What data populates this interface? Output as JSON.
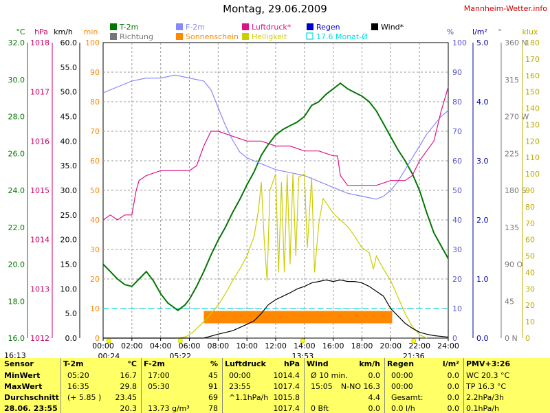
{
  "header": {
    "title": "Montag, 29.06.2009",
    "site": "Mannheim-Wetter.info"
  },
  "legend": [
    {
      "label": "T-2m",
      "color": "#007700",
      "kind": "solid"
    },
    {
      "label": "Richtung",
      "color": "#777777",
      "kind": "solid"
    },
    {
      "label": "F-2m",
      "color": "#8888ff",
      "kind": "solid"
    },
    {
      "label": "Sonnenschein",
      "color": "#ff8800",
      "kind": "solid"
    },
    {
      "label": "Luftdruck*",
      "color": "#dd1188",
      "kind": "solid"
    },
    {
      "label": "Helligkeit",
      "color": "#cccc00",
      "kind": "solid"
    },
    {
      "label": "Regen",
      "color": "#0000cc",
      "kind": "solid"
    },
    {
      "label": "17.6 Monat-Ø",
      "color": "#00dddd",
      "kind": "outline"
    },
    {
      "label": "Wind*",
      "color": "#000000",
      "kind": "solid"
    }
  ],
  "axis_units": {
    "temp": {
      "label": "°C",
      "color": "#007700"
    },
    "pressure": {
      "label": "hPa",
      "color": "#cc0066"
    },
    "wind": {
      "label": "km/h",
      "color": "#000000"
    },
    "minutes": {
      "label": "min",
      "color": "#ff8800"
    },
    "humidity": {
      "label": "%",
      "color": "#5555cc"
    },
    "rain": {
      "label": "l/m²",
      "color": "#0000aa"
    },
    "direction": {
      "label": "°",
      "color": "#777777"
    },
    "lux": {
      "label": "klux",
      "color": "#bbaa00"
    }
  },
  "chart_data": {
    "type": "line",
    "x_range": [
      "00:00",
      "24:00"
    ],
    "x_ticks": [
      "00:00",
      "02:00",
      "04:00",
      "06:00",
      "08:00",
      "10:00",
      "12:00",
      "14:00",
      "16:00",
      "18:00",
      "20:00",
      "22:00",
      "24:00"
    ],
    "axes": {
      "temp": {
        "range": [
          16,
          32
        ],
        "ticks": [
          "16.0",
          "18.0",
          "20.0",
          "22.0",
          "24.0",
          "26.0",
          "28.0",
          "30.0",
          "32.0"
        ]
      },
      "pressure": {
        "range": [
          1012,
          1018
        ],
        "ticks": [
          "1012",
          "1013",
          "1014",
          "1015",
          "1016",
          "1017",
          "1018"
        ]
      },
      "wind": {
        "range": [
          0,
          60
        ],
        "ticks": [
          "0.0",
          "5.0",
          "10.0",
          "15.0",
          "20.0",
          "25.0",
          "30.0",
          "35.0",
          "40.0",
          "45.0",
          "50.0",
          "55.0",
          "60.0"
        ]
      },
      "minutes": {
        "range": [
          0,
          100
        ],
        "ticks": [
          "0",
          "10",
          "20",
          "30",
          "40",
          "50",
          "60",
          "70",
          "80",
          "90",
          "100"
        ]
      },
      "humidity": {
        "range": [
          0,
          100
        ],
        "ticks": [
          "0",
          "10",
          "20",
          "30",
          "40",
          "50",
          "60",
          "70",
          "80",
          "90",
          "100"
        ]
      },
      "rain": {
        "range": [
          0,
          5
        ],
        "ticks": [
          "0.0",
          "1.0",
          "2.0",
          "3.0",
          "4.0",
          "5.0"
        ]
      },
      "direction": {
        "range": [
          0,
          360
        ],
        "ticks": [
          "0 N",
          "45",
          "90 O",
          "135",
          "180 S",
          "225",
          "270 W",
          "315",
          "360 N"
        ]
      },
      "lux": {
        "range": [
          0,
          180
        ],
        "ticks": [
          "0",
          "10",
          "20",
          "30",
          "40",
          "50",
          "60",
          "70",
          "80",
          "90",
          "100",
          "110",
          "120",
          "130",
          "140",
          "150",
          "160",
          "170",
          "180"
        ]
      }
    },
    "sun_markers": [
      "00:24",
      "05:22",
      "13:53",
      "21:36"
    ],
    "monthly_avg_temp_line": 17.6,
    "series": [
      {
        "name": "T-2m",
        "axis": "temp",
        "color": "#007700",
        "points": [
          [
            0,
            20.0
          ],
          [
            0.5,
            19.6
          ],
          [
            1,
            19.2
          ],
          [
            1.5,
            18.9
          ],
          [
            2,
            18.8
          ],
          [
            2.5,
            19.2
          ],
          [
            3,
            19.6
          ],
          [
            3.5,
            19.1
          ],
          [
            4,
            18.4
          ],
          [
            4.5,
            17.9
          ],
          [
            5.2,
            17.5
          ],
          [
            5.7,
            17.8
          ],
          [
            6,
            18.1
          ],
          [
            6.5,
            18.8
          ],
          [
            7,
            19.6
          ],
          [
            7.5,
            20.5
          ],
          [
            8,
            21.3
          ],
          [
            8.5,
            22.0
          ],
          [
            9,
            22.8
          ],
          [
            9.5,
            23.5
          ],
          [
            10,
            24.3
          ],
          [
            10.5,
            25.0
          ],
          [
            11,
            25.9
          ],
          [
            11.5,
            26.5
          ],
          [
            12,
            27.0
          ],
          [
            12.5,
            27.3
          ],
          [
            13,
            27.5
          ],
          [
            13.5,
            27.7
          ],
          [
            14,
            28.0
          ],
          [
            14.5,
            28.6
          ],
          [
            15,
            28.8
          ],
          [
            15.5,
            29.2
          ],
          [
            16,
            29.5
          ],
          [
            16.5,
            29.8
          ],
          [
            17,
            29.5
          ],
          [
            17.5,
            29.3
          ],
          [
            18,
            29.1
          ],
          [
            18.5,
            28.8
          ],
          [
            19,
            28.3
          ],
          [
            19.5,
            27.6
          ],
          [
            20,
            26.9
          ],
          [
            20.5,
            26.2
          ],
          [
            21,
            25.6
          ],
          [
            21.5,
            24.9
          ],
          [
            22,
            24.0
          ],
          [
            22.5,
            22.8
          ],
          [
            23,
            21.7
          ],
          [
            23.5,
            21.0
          ],
          [
            24,
            20.3
          ]
        ]
      },
      {
        "name": "F-2m",
        "axis": "humidity",
        "color": "#8888ff",
        "points": [
          [
            0,
            83
          ],
          [
            1,
            85
          ],
          [
            2,
            87
          ],
          [
            3,
            88
          ],
          [
            4,
            88
          ],
          [
            5,
            89
          ],
          [
            6,
            88
          ],
          [
            7,
            87
          ],
          [
            7.5,
            84
          ],
          [
            8,
            78
          ],
          [
            8.5,
            72
          ],
          [
            9,
            67
          ],
          [
            9.5,
            63
          ],
          [
            10,
            61
          ],
          [
            10.5,
            60
          ],
          [
            11,
            59
          ],
          [
            11.5,
            58
          ],
          [
            12,
            57
          ],
          [
            13,
            56
          ],
          [
            14,
            55
          ],
          [
            15,
            53
          ],
          [
            16,
            51
          ],
          [
            17,
            49
          ],
          [
            18,
            48
          ],
          [
            19,
            47
          ],
          [
            19.5,
            48
          ],
          [
            20,
            50
          ],
          [
            20.5,
            53
          ],
          [
            21,
            57
          ],
          [
            21.5,
            61
          ],
          [
            22,
            65
          ],
          [
            22.5,
            69
          ],
          [
            23,
            72
          ],
          [
            23.5,
            75
          ],
          [
            24,
            77
          ]
        ]
      },
      {
        "name": "Luftdruck*",
        "axis": "pressure",
        "color": "#dd1188",
        "points": [
          [
            0,
            1014.4
          ],
          [
            0.5,
            1014.5
          ],
          [
            1,
            1014.4
          ],
          [
            1.5,
            1014.5
          ],
          [
            2,
            1014.5
          ],
          [
            2.3,
            1015.0
          ],
          [
            2.5,
            1015.2
          ],
          [
            3,
            1015.3
          ],
          [
            4,
            1015.4
          ],
          [
            5,
            1015.4
          ],
          [
            6,
            1015.4
          ],
          [
            6.5,
            1015.5
          ],
          [
            7,
            1015.9
          ],
          [
            7.5,
            1016.2
          ],
          [
            8,
            1016.2
          ],
          [
            9,
            1016.1
          ],
          [
            10,
            1016.0
          ],
          [
            11,
            1016.0
          ],
          [
            12,
            1015.9
          ],
          [
            13,
            1015.9
          ],
          [
            14,
            1015.8
          ],
          [
            15,
            1015.8
          ],
          [
            16,
            1015.7
          ],
          [
            16.3,
            1015.7
          ],
          [
            16.5,
            1015.3
          ],
          [
            17,
            1015.1
          ],
          [
            18,
            1015.1
          ],
          [
            19,
            1015.1
          ],
          [
            20,
            1015.2
          ],
          [
            21,
            1015.2
          ],
          [
            21.5,
            1015.3
          ],
          [
            22,
            1015.6
          ],
          [
            22.5,
            1015.8
          ],
          [
            23,
            1016.0
          ],
          [
            23.5,
            1016.6
          ],
          [
            24,
            1017.1
          ]
        ]
      },
      {
        "name": "Helligkeit",
        "axis": "lux",
        "color": "#cccc00",
        "points": [
          [
            5.3,
            0
          ],
          [
            5.8,
            1
          ],
          [
            6.3,
            4
          ],
          [
            7,
            10
          ],
          [
            7.5,
            15
          ],
          [
            8,
            20
          ],
          [
            8.5,
            27
          ],
          [
            9,
            35
          ],
          [
            9.5,
            42
          ],
          [
            10,
            50
          ],
          [
            10.5,
            62
          ],
          [
            10.8,
            78
          ],
          [
            11,
            95
          ],
          [
            11.2,
            60
          ],
          [
            11.4,
            35
          ],
          [
            11.6,
            90
          ],
          [
            12,
            100
          ],
          [
            12.2,
            40
          ],
          [
            12.4,
            95
          ],
          [
            12.6,
            40
          ],
          [
            12.8,
            100
          ],
          [
            13,
            45
          ],
          [
            13.2,
            100
          ],
          [
            13.4,
            50
          ],
          [
            13.6,
            98
          ],
          [
            14,
            100
          ],
          [
            14.2,
            55
          ],
          [
            14.5,
            98
          ],
          [
            14.7,
            40
          ],
          [
            15,
            70
          ],
          [
            15.3,
            85
          ],
          [
            15.7,
            80
          ],
          [
            16,
            76
          ],
          [
            16.5,
            72
          ],
          [
            17,
            68
          ],
          [
            17.5,
            62
          ],
          [
            18,
            55
          ],
          [
            18.5,
            52
          ],
          [
            18.8,
            42
          ],
          [
            19,
            50
          ],
          [
            19.5,
            42
          ],
          [
            20,
            35
          ],
          [
            20.5,
            25
          ],
          [
            21,
            15
          ],
          [
            21.5,
            7
          ],
          [
            22,
            2
          ],
          [
            22.5,
            0
          ]
        ]
      },
      {
        "name": "Wind*",
        "axis": "wind",
        "color": "#000000",
        "points": [
          [
            0,
            0
          ],
          [
            1,
            0
          ],
          [
            2,
            0
          ],
          [
            3,
            0
          ],
          [
            4,
            0
          ],
          [
            5,
            0
          ],
          [
            6,
            0
          ],
          [
            7,
            0
          ],
          [
            8,
            0.8
          ],
          [
            9,
            1.5
          ],
          [
            10,
            2.8
          ],
          [
            10.5,
            3.5
          ],
          [
            11,
            5.0
          ],
          [
            11.5,
            6.8
          ],
          [
            12,
            7.8
          ],
          [
            12.5,
            8.5
          ],
          [
            13,
            9.2
          ],
          [
            13.5,
            10.0
          ],
          [
            14,
            10.5
          ],
          [
            14.5,
            11.2
          ],
          [
            15,
            11.5
          ],
          [
            15.5,
            11.8
          ],
          [
            16,
            11.5
          ],
          [
            16.5,
            11.8
          ],
          [
            17,
            11.5
          ],
          [
            17.5,
            11.5
          ],
          [
            18,
            11.2
          ],
          [
            18.5,
            10.5
          ],
          [
            19,
            9.5
          ],
          [
            19.5,
            8.5
          ],
          [
            20,
            6.0
          ],
          [
            20.5,
            4.5
          ],
          [
            21,
            3.0
          ],
          [
            21.5,
            2.0
          ],
          [
            22,
            1.2
          ],
          [
            22.5,
            0.8
          ],
          [
            23,
            0.5
          ],
          [
            24,
            0.2
          ]
        ]
      },
      {
        "name": "Sonnenschein",
        "axis": "minutes",
        "color": "#ff8800",
        "bars": [
          [
            7.0,
            20.1,
            5
          ]
        ]
      }
    ]
  },
  "summary_table": {
    "footer_time": "16:13",
    "columns": [
      {
        "title": "Sensor",
        "unit": "",
        "rows": [
          "MinWert",
          "MaxWert",
          "Durchschnitt",
          "28.06. 23:55"
        ]
      },
      {
        "title": "T-2m",
        "unit": "°C",
        "rows": [
          [
            "05:20",
            "16.7"
          ],
          [
            "16:35",
            "29.8"
          ],
          [
            "(+ 5.85 )",
            "23.45"
          ],
          [
            "",
            "20.3"
          ]
        ]
      },
      {
        "title": "F-2m",
        "unit": "%",
        "rows": [
          [
            "17:00",
            "45"
          ],
          [
            "05:30",
            "91"
          ],
          [
            "",
            "69"
          ],
          [
            "13.73 g/m³",
            "78"
          ]
        ]
      },
      {
        "title": "Luftdruck",
        "unit": "hPa",
        "rows": [
          [
            "00:00",
            "1014.4"
          ],
          [
            "23:55",
            "1017.4"
          ],
          [
            "^1.1hPa/h",
            "1015.8"
          ],
          [
            "",
            "1017.4"
          ]
        ]
      },
      {
        "title": "Wind",
        "unit": "km/h",
        "rows": [
          [
            "Ø 10 min.",
            "0.0"
          ],
          [
            "15:05",
            "N-NO 16.3"
          ],
          [
            "",
            "4.4"
          ],
          [
            "0 Bft",
            "0.0"
          ]
        ]
      },
      {
        "title": "Regen",
        "unit": "l/m²",
        "rows": [
          [
            "00:00",
            "0.0"
          ],
          [
            "00:00",
            "0.0"
          ],
          [
            "Gesamt:",
            "0.0"
          ],
          [
            "0.0 l/h",
            "0.0"
          ]
        ]
      },
      {
        "title": "PMV+3:26",
        "unit": "",
        "rows": [
          "WC 20.3 °C",
          "TP 16.3 °C",
          "2.2hPa/3h",
          "0.1hPa/h"
        ]
      }
    ]
  }
}
